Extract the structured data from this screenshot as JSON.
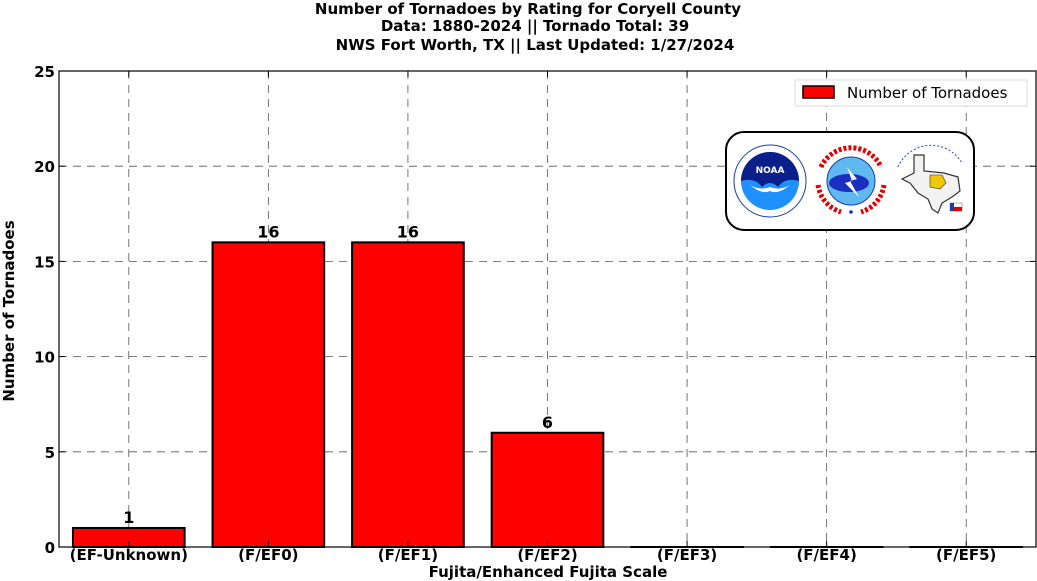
{
  "chart_data": {
    "type": "bar",
    "title": [
      "Number of Tornadoes by Rating for Coryell County",
      "Data: 1880-2024 || Tornado Total: 39",
      "NWS Fort Worth, TX || Last Updated: 1/27/2024"
    ],
    "xlabel": "Fujita/Enhanced Fujita Scale",
    "ylabel": "Number of Tornadoes",
    "categories": [
      "(EF-Unknown)",
      "(F/EF0)",
      "(F/EF1)",
      "(F/EF2)",
      "(F/EF3)",
      "(F/EF4)",
      "(F/EF5)"
    ],
    "series": [
      {
        "name": "Number of Tornadoes",
        "values": [
          1,
          16,
          16,
          6,
          0,
          0,
          0
        ]
      }
    ],
    "data_labels": [
      "1",
      "16",
      "16",
      "6",
      "",
      "",
      ""
    ],
    "ylim": [
      0,
      25
    ],
    "yticks": [
      0,
      5,
      10,
      15,
      20,
      25
    ],
    "grid": true,
    "legend_position": "top-right",
    "bar_color": "#ff0000",
    "edge_color": "#000000",
    "logos": [
      "NOAA",
      "NATIONAL WEATHER SERVICE",
      "Texas map"
    ]
  }
}
